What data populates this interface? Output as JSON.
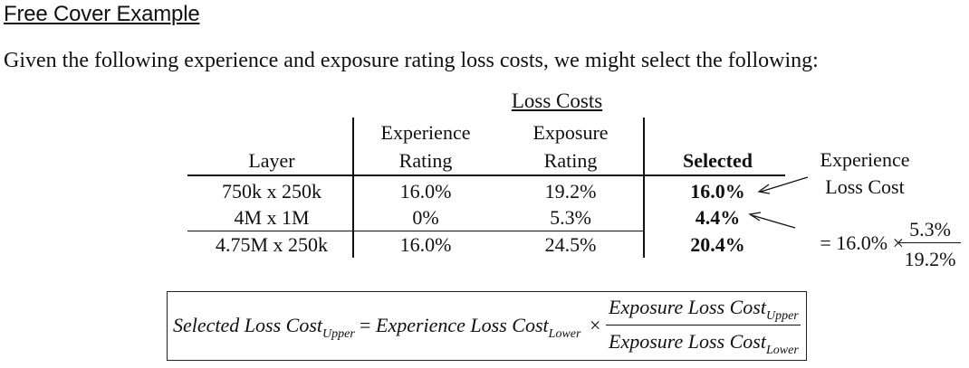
{
  "title": "Free Cover Example",
  "intro": "Given the following experience and exposure rating loss costs, we might select the following:",
  "table": {
    "group_header": "Loss Costs",
    "headers": {
      "layer": "Layer",
      "exp_line1": "Experience",
      "exp_line2": "Rating",
      "expo_line1": "Exposure",
      "expo_line2": "Rating",
      "selected": "Selected"
    },
    "rows": [
      {
        "layer": "750k x 250k",
        "experience": "16.0%",
        "exposure": "19.2%",
        "selected": "16.0%"
      },
      {
        "layer": "4M x 1M",
        "experience": "0%",
        "exposure": "5.3%",
        "selected": "4.4%"
      },
      {
        "layer": "4.75M x 250k",
        "experience": "16.0%",
        "exposure": "24.5%",
        "selected": "20.4%"
      }
    ]
  },
  "annotation": {
    "line1": "Experience",
    "line2": "Loss Cost",
    "calc_prefix": "= 16.0% ×",
    "calc_num": "5.3%",
    "calc_den": "19.2%"
  },
  "formula": {
    "lhs": "Selected Loss Cost",
    "lhs_sub": "Upper",
    "eq": "=",
    "mid": "Experience Loss Cost",
    "mid_sub": "Lower",
    "times": "×",
    "num": "Exposure Loss Cost",
    "num_sub": "Upper",
    "den": "Exposure Loss Cost",
    "den_sub": "Lower"
  }
}
